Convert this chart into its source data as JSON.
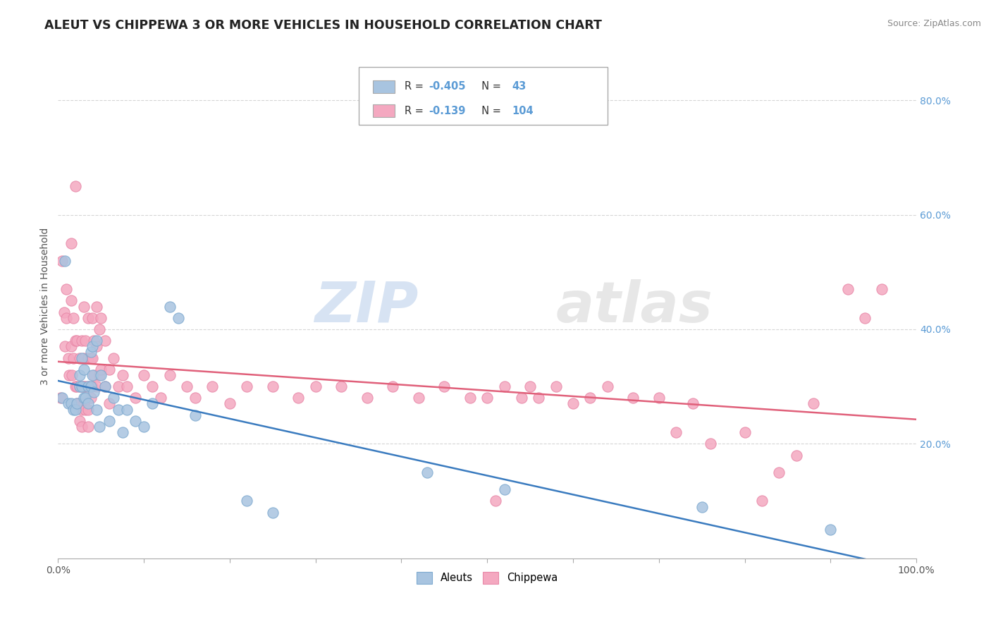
{
  "title": "ALEUT VS CHIPPEWA 3 OR MORE VEHICLES IN HOUSEHOLD CORRELATION CHART",
  "source": "Source: ZipAtlas.com",
  "ylabel": "3 or more Vehicles in Household",
  "xmin": 0.0,
  "xmax": 1.0,
  "ymin": 0.0,
  "ymax": 0.88,
  "aleut_R": "-0.405",
  "aleut_N": "43",
  "chippewa_R": "-0.139",
  "chippewa_N": "104",
  "aleut_color": "#a8c4e0",
  "chippewa_color": "#f4a8c0",
  "aleut_edge_color": "#7eaacf",
  "chippewa_edge_color": "#e888a8",
  "aleut_line_color": "#3a7bbf",
  "chippewa_line_color": "#e0607a",
  "right_tick_color": "#5b9bd5",
  "aleut_scatter": [
    [
      0.005,
      0.28
    ],
    [
      0.008,
      0.52
    ],
    [
      0.012,
      0.27
    ],
    [
      0.015,
      0.27
    ],
    [
      0.018,
      0.26
    ],
    [
      0.02,
      0.26
    ],
    [
      0.022,
      0.27
    ],
    [
      0.025,
      0.32
    ],
    [
      0.025,
      0.3
    ],
    [
      0.028,
      0.35
    ],
    [
      0.028,
      0.3
    ],
    [
      0.03,
      0.33
    ],
    [
      0.03,
      0.28
    ],
    [
      0.032,
      0.28
    ],
    [
      0.035,
      0.3
    ],
    [
      0.035,
      0.27
    ],
    [
      0.038,
      0.36
    ],
    [
      0.038,
      0.3
    ],
    [
      0.04,
      0.37
    ],
    [
      0.04,
      0.32
    ],
    [
      0.042,
      0.29
    ],
    [
      0.045,
      0.38
    ],
    [
      0.045,
      0.26
    ],
    [
      0.048,
      0.23
    ],
    [
      0.05,
      0.32
    ],
    [
      0.055,
      0.3
    ],
    [
      0.06,
      0.24
    ],
    [
      0.065,
      0.28
    ],
    [
      0.07,
      0.26
    ],
    [
      0.075,
      0.22
    ],
    [
      0.08,
      0.26
    ],
    [
      0.09,
      0.24
    ],
    [
      0.1,
      0.23
    ],
    [
      0.11,
      0.27
    ],
    [
      0.13,
      0.44
    ],
    [
      0.14,
      0.42
    ],
    [
      0.16,
      0.25
    ],
    [
      0.22,
      0.1
    ],
    [
      0.25,
      0.08
    ],
    [
      0.43,
      0.15
    ],
    [
      0.52,
      0.12
    ],
    [
      0.75,
      0.09
    ],
    [
      0.9,
      0.05
    ]
  ],
  "chippewa_scatter": [
    [
      0.003,
      0.28
    ],
    [
      0.005,
      0.52
    ],
    [
      0.007,
      0.43
    ],
    [
      0.008,
      0.37
    ],
    [
      0.01,
      0.47
    ],
    [
      0.01,
      0.42
    ],
    [
      0.012,
      0.35
    ],
    [
      0.013,
      0.32
    ],
    [
      0.015,
      0.55
    ],
    [
      0.015,
      0.45
    ],
    [
      0.015,
      0.37
    ],
    [
      0.016,
      0.32
    ],
    [
      0.018,
      0.42
    ],
    [
      0.018,
      0.35
    ],
    [
      0.02,
      0.65
    ],
    [
      0.02,
      0.38
    ],
    [
      0.02,
      0.3
    ],
    [
      0.022,
      0.38
    ],
    [
      0.022,
      0.3
    ],
    [
      0.022,
      0.27
    ],
    [
      0.025,
      0.35
    ],
    [
      0.025,
      0.3
    ],
    [
      0.025,
      0.27
    ],
    [
      0.025,
      0.24
    ],
    [
      0.028,
      0.38
    ],
    [
      0.028,
      0.3
    ],
    [
      0.028,
      0.26
    ],
    [
      0.028,
      0.23
    ],
    [
      0.03,
      0.44
    ],
    [
      0.03,
      0.35
    ],
    [
      0.03,
      0.3
    ],
    [
      0.03,
      0.27
    ],
    [
      0.032,
      0.38
    ],
    [
      0.032,
      0.3
    ],
    [
      0.032,
      0.26
    ],
    [
      0.035,
      0.42
    ],
    [
      0.035,
      0.35
    ],
    [
      0.035,
      0.3
    ],
    [
      0.035,
      0.26
    ],
    [
      0.035,
      0.23
    ],
    [
      0.038,
      0.35
    ],
    [
      0.038,
      0.28
    ],
    [
      0.04,
      0.42
    ],
    [
      0.04,
      0.35
    ],
    [
      0.04,
      0.3
    ],
    [
      0.042,
      0.38
    ],
    [
      0.042,
      0.32
    ],
    [
      0.045,
      0.44
    ],
    [
      0.045,
      0.37
    ],
    [
      0.045,
      0.3
    ],
    [
      0.048,
      0.4
    ],
    [
      0.048,
      0.32
    ],
    [
      0.05,
      0.42
    ],
    [
      0.05,
      0.33
    ],
    [
      0.055,
      0.38
    ],
    [
      0.055,
      0.3
    ],
    [
      0.06,
      0.33
    ],
    [
      0.06,
      0.27
    ],
    [
      0.065,
      0.35
    ],
    [
      0.07,
      0.3
    ],
    [
      0.075,
      0.32
    ],
    [
      0.08,
      0.3
    ],
    [
      0.09,
      0.28
    ],
    [
      0.1,
      0.32
    ],
    [
      0.11,
      0.3
    ],
    [
      0.12,
      0.28
    ],
    [
      0.13,
      0.32
    ],
    [
      0.15,
      0.3
    ],
    [
      0.16,
      0.28
    ],
    [
      0.18,
      0.3
    ],
    [
      0.2,
      0.27
    ],
    [
      0.22,
      0.3
    ],
    [
      0.25,
      0.3
    ],
    [
      0.28,
      0.28
    ],
    [
      0.3,
      0.3
    ],
    [
      0.33,
      0.3
    ],
    [
      0.36,
      0.28
    ],
    [
      0.39,
      0.3
    ],
    [
      0.42,
      0.28
    ],
    [
      0.45,
      0.3
    ],
    [
      0.48,
      0.28
    ],
    [
      0.5,
      0.28
    ],
    [
      0.51,
      0.1
    ],
    [
      0.52,
      0.3
    ],
    [
      0.54,
      0.28
    ],
    [
      0.55,
      0.3
    ],
    [
      0.56,
      0.28
    ],
    [
      0.58,
      0.3
    ],
    [
      0.6,
      0.27
    ],
    [
      0.62,
      0.28
    ],
    [
      0.64,
      0.3
    ],
    [
      0.67,
      0.28
    ],
    [
      0.7,
      0.28
    ],
    [
      0.72,
      0.22
    ],
    [
      0.74,
      0.27
    ],
    [
      0.76,
      0.2
    ],
    [
      0.8,
      0.22
    ],
    [
      0.82,
      0.1
    ],
    [
      0.84,
      0.15
    ],
    [
      0.86,
      0.18
    ],
    [
      0.88,
      0.27
    ],
    [
      0.92,
      0.47
    ],
    [
      0.94,
      0.42
    ],
    [
      0.96,
      0.47
    ]
  ],
  "watermark_zip": "ZIP",
  "watermark_atlas": "atlas",
  "background_color": "#ffffff",
  "grid_color": "#cccccc",
  "legend_text_color": "#333366"
}
